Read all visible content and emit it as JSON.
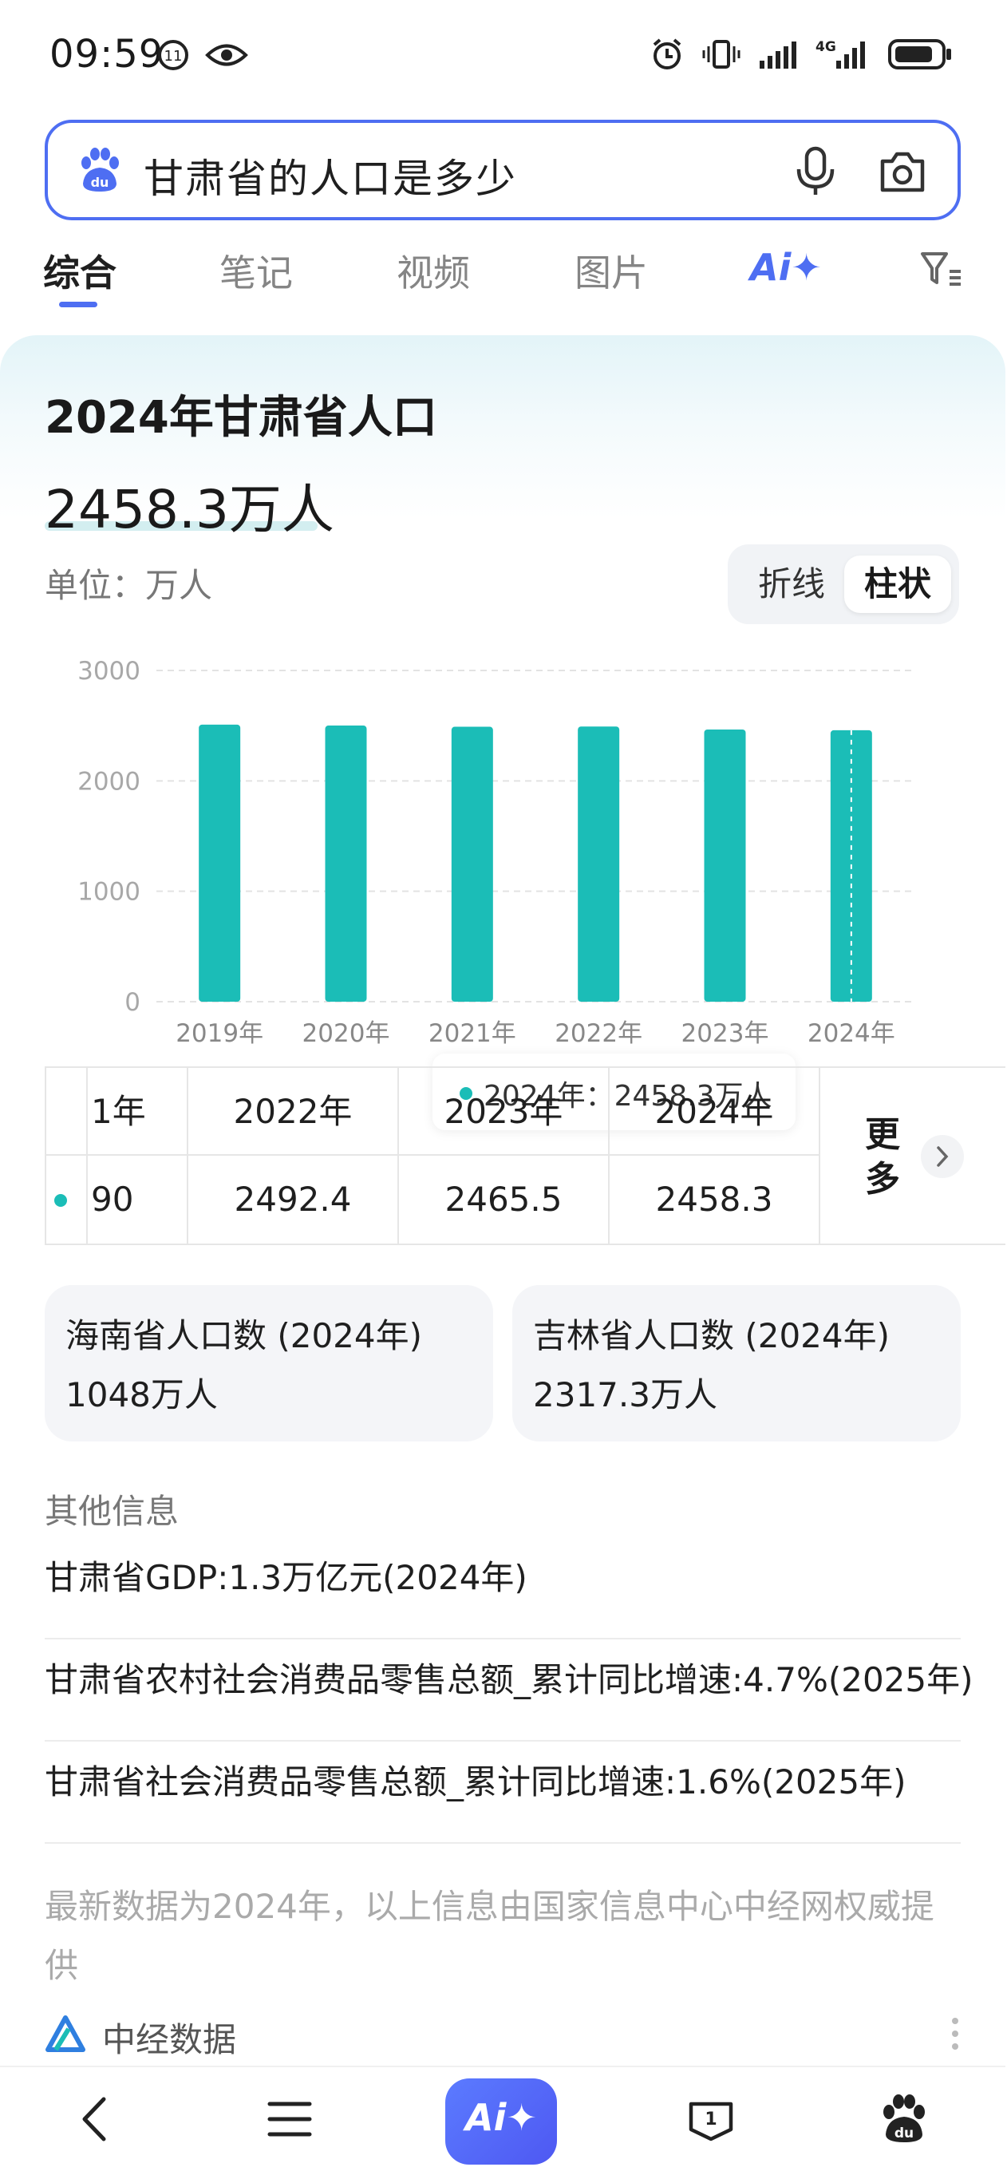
{
  "status_bar": {
    "time": "09:59",
    "network": "4G"
  },
  "search": {
    "query": "甘肃省的人口是多少"
  },
  "tabs": [
    {
      "label": "综合",
      "active": true
    },
    {
      "label": "笔记",
      "active": false
    },
    {
      "label": "视频",
      "active": false
    },
    {
      "label": "图片",
      "active": false
    }
  ],
  "ai_tab_label": "Ai✦",
  "result_card": {
    "title": "2024年甘肃省人口",
    "value": "2458.3万人",
    "unit_label": "单位：万人",
    "chart_toggle": {
      "line": "折线",
      "bar": "柱状",
      "selected": "bar"
    },
    "tooltip": "2024年：2458.3万人"
  },
  "chart_data": {
    "type": "bar",
    "categories": [
      "2019年",
      "2020年",
      "2021年",
      "2022年",
      "2023年",
      "2024年"
    ],
    "values": [
      2509,
      2501,
      2490,
      2492.4,
      2465.5,
      2458.3
    ],
    "yticks": [
      "3000",
      "2000",
      "1000",
      "0"
    ],
    "ylim": [
      0,
      3000
    ],
    "grid": true,
    "bar_color": "#1bbdb7"
  },
  "table": {
    "headers": [
      "1年",
      "2022年",
      "2023年",
      "2024年"
    ],
    "values": [
      "90",
      "2492.4",
      "2465.5",
      "2458.3"
    ],
    "more_label": "更多"
  },
  "related": [
    {
      "title": "海南省人口数 (2024年)",
      "value": "1048万人"
    },
    {
      "title": "吉林省人口数 (2024年)",
      "value": "2317.3万人"
    }
  ],
  "other_info": {
    "title": "其他信息",
    "items": [
      "甘肃省GDP:1.3万亿元(2024年)",
      "甘肃省农村社会消费品零售总额_累计同比增速:4.7%(2025年)",
      "甘肃省社会消费品零售总额_累计同比增速:1.6%(2025年)"
    ]
  },
  "footnote": "最新数据为2024年，以上信息由国家信息中心中经网权威提供",
  "source": {
    "name": "中经数据"
  },
  "bottom_nav": {
    "ai_label": "Ai✦",
    "tabs_count": "1"
  },
  "colors": {
    "accent": "#4e6ef2",
    "bar": "#1bbdb7"
  }
}
